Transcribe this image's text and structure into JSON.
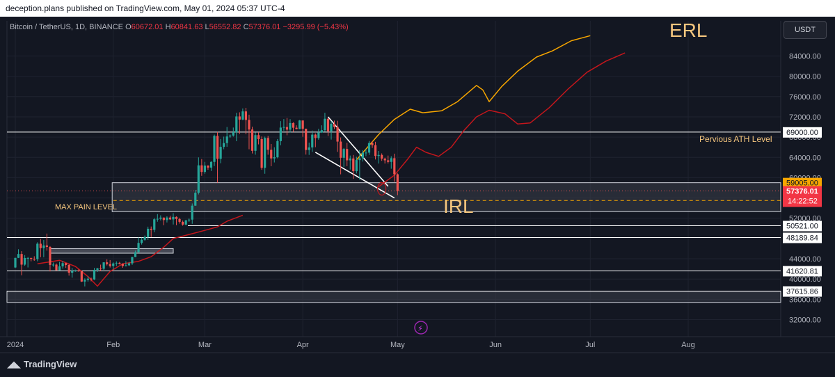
{
  "publisher": {
    "text": "deception.plans published on TradingView.com, May 01, 2024 05:37 UTC-4"
  },
  "symbol": {
    "name": "Bitcoin / TetherUS, 1D, BINANCE",
    "o_label": "O",
    "o": "60672.01",
    "h_label": "H",
    "h": "60841.63",
    "l_label": "L",
    "l": "56552.82",
    "c_label": "C",
    "c": "57376.01",
    "change": "−3295.99 (−5.43%)"
  },
  "currency_button": "USDT",
  "brand": {
    "label": "TradingView"
  },
  "colors": {
    "up": "#26a69a",
    "down": "#ef5350",
    "background": "#131722",
    "accent_orange": "#f7a600",
    "path_red": "#c4161c"
  },
  "chart_data": {
    "type": "candlestick",
    "title": "Bitcoin / TetherUS, 1D, BINANCE",
    "x_range": [
      "2024-01-01",
      "2024-08-31"
    ],
    "ylim": [
      28000,
      90000
    ],
    "grid": true,
    "x_ticks": [
      "2024",
      "Feb",
      "Mar",
      "Apr",
      "May",
      "Jun",
      "Jul",
      "Aug"
    ],
    "y_ticks": [
      "84000.00",
      "80000.00",
      "76000.00",
      "72000.00",
      "68000.00",
      "64000.00",
      "60000.00",
      "56000.00",
      "52000.00",
      "48000.00",
      "44000.00",
      "40000.00",
      "36000.00",
      "32000.00"
    ],
    "candles": [
      [
        "2024-01-01",
        42283,
        44186,
        42173,
        44180
      ],
      [
        "2024-01-02",
        44180,
        45879,
        44148,
        44946
      ],
      [
        "2024-01-03",
        44946,
        45500,
        40750,
        42845
      ],
      [
        "2024-01-04",
        42845,
        44729,
        42613,
        44151
      ],
      [
        "2024-01-05",
        44151,
        44340,
        42284,
        44162
      ],
      [
        "2024-01-06",
        44162,
        44187,
        43500,
        43989
      ],
      [
        "2024-01-07",
        43989,
        44495,
        43599,
        43943
      ],
      [
        "2024-01-08",
        43943,
        47248,
        43500,
        46970
      ],
      [
        "2024-01-09",
        46970,
        47893,
        44300,
        46105
      ],
      [
        "2024-01-10",
        46105,
        47695,
        44300,
        46632
      ],
      [
        "2024-01-11",
        46632,
        48970,
        45606,
        46339
      ],
      [
        "2024-01-12",
        46339,
        46500,
        41500,
        42782
      ],
      [
        "2024-01-13",
        42782,
        43257,
        42436,
        42847
      ],
      [
        "2024-01-14",
        42847,
        43079,
        41720,
        41732
      ],
      [
        "2024-01-15",
        41732,
        43400,
        41718,
        42511
      ],
      [
        "2024-01-16",
        42511,
        43578,
        42050,
        43137
      ],
      [
        "2024-01-17",
        43137,
        43198,
        42200,
        42776
      ],
      [
        "2024-01-18",
        42776,
        42930,
        40683,
        41262
      ],
      [
        "2024-01-19",
        41262,
        42196,
        40280,
        41618
      ],
      [
        "2024-01-20",
        41618,
        41865,
        41424,
        41665
      ],
      [
        "2024-01-21",
        41665,
        41877,
        41446,
        41545
      ],
      [
        "2024-01-22",
        41545,
        41689,
        39431,
        39507
      ],
      [
        "2024-01-23",
        39507,
        40129,
        38555,
        39845
      ],
      [
        "2024-01-24",
        39845,
        40555,
        39485,
        40077
      ],
      [
        "2024-01-25",
        40077,
        40300,
        39550,
        39933
      ],
      [
        "2024-01-26",
        39933,
        42200,
        39822,
        41816
      ],
      [
        "2024-01-27",
        41816,
        42200,
        41394,
        42120
      ],
      [
        "2024-01-28",
        42120,
        42842,
        41620,
        42031
      ],
      [
        "2024-01-29",
        42031,
        43305,
        41804,
        43300
      ],
      [
        "2024-01-30",
        43300,
        43882,
        42683,
        42946
      ],
      [
        "2024-01-31",
        42946,
        43745,
        42276,
        42580
      ],
      [
        "2024-02-01",
        42580,
        43285,
        41884,
        43082
      ],
      [
        "2024-02-02",
        43082,
        43494,
        42564,
        43200
      ],
      [
        "2024-02-03",
        43200,
        43380,
        42880,
        43011
      ],
      [
        "2024-02-04",
        43011,
        43119,
        42222,
        42582
      ],
      [
        "2024-02-05",
        42582,
        43538,
        42500,
        42708
      ],
      [
        "2024-02-06",
        42708,
        43400,
        42574,
        43098
      ],
      [
        "2024-02-07",
        43098,
        44396,
        42788,
        44349
      ],
      [
        "2024-02-08",
        44349,
        45614,
        44331,
        45288
      ],
      [
        "2024-02-09",
        45288,
        48200,
        45242,
        47132
      ],
      [
        "2024-02-10",
        47132,
        48170,
        46800,
        47751
      ],
      [
        "2024-02-11",
        47751,
        48592,
        47558,
        48299
      ],
      [
        "2024-02-12",
        48299,
        50334,
        47710,
        49917
      ],
      [
        "2024-02-13",
        49917,
        50368,
        48300,
        49699
      ],
      [
        "2024-02-14",
        49699,
        52043,
        49225,
        51795
      ],
      [
        "2024-02-15",
        51795,
        52816,
        51314,
        51880
      ],
      [
        "2024-02-16",
        51880,
        52572,
        51566,
        52124
      ],
      [
        "2024-02-17",
        52124,
        52162,
        50625,
        51642
      ],
      [
        "2024-02-18",
        51642,
        52377,
        51163,
        52137
      ],
      [
        "2024-02-19",
        52137,
        52488,
        51677,
        51774
      ],
      [
        "2024-02-20",
        51774,
        52985,
        50760,
        52258
      ],
      [
        "2024-02-21",
        52258,
        52366,
        50625,
        51849
      ],
      [
        "2024-02-22",
        51849,
        52065,
        50940,
        51288
      ],
      [
        "2024-02-23",
        51288,
        51548,
        50521,
        50744
      ],
      [
        "2024-02-24",
        50744,
        51698,
        50586,
        51568
      ],
      [
        "2024-02-25",
        51568,
        51950,
        51281,
        51728
      ],
      [
        "2024-02-26",
        51728,
        54910,
        50901,
        54476
      ],
      [
        "2024-02-27",
        54476,
        57588,
        54451,
        57037
      ],
      [
        "2024-02-28",
        57037,
        64000,
        56691,
        62432
      ],
      [
        "2024-02-29",
        62432,
        63676,
        60364,
        61130
      ],
      [
        "2024-03-01",
        61130,
        63114,
        60777,
        62387
      ],
      [
        "2024-03-02",
        62387,
        62433,
        61561,
        61987
      ],
      [
        "2024-03-03",
        61987,
        63231,
        61321,
        63113
      ],
      [
        "2024-03-04",
        63113,
        68499,
        62300,
        68245
      ],
      [
        "2024-03-05",
        68245,
        69000,
        59005,
        63724
      ],
      [
        "2024-03-06",
        63724,
        67637,
        62848,
        66074
      ],
      [
        "2024-03-07",
        66074,
        68100,
        65600,
        66823
      ],
      [
        "2024-03-08",
        66823,
        69990,
        66082,
        68124
      ],
      [
        "2024-03-09",
        68124,
        68541,
        67861,
        68313
      ],
      [
        "2024-03-10",
        68313,
        69887,
        68094,
        68955
      ],
      [
        "2024-03-11",
        68955,
        72800,
        67194,
        72078
      ],
      [
        "2024-03-12",
        72078,
        72890,
        68620,
        71452
      ],
      [
        "2024-03-13",
        71452,
        73650,
        71333,
        73072
      ],
      [
        "2024-03-14",
        73072,
        73777,
        68555,
        71388
      ],
      [
        "2024-03-15",
        71388,
        72419,
        65600,
        69499
      ],
      [
        "2024-03-16",
        69499,
        70043,
        64780,
        65300
      ],
      [
        "2024-03-17",
        65300,
        68904,
        64533,
        68393
      ],
      [
        "2024-03-18",
        68393,
        68956,
        66565,
        67609
      ],
      [
        "2024-03-19",
        67609,
        68124,
        61555,
        61937
      ],
      [
        "2024-03-20",
        61937,
        68100,
        60775,
        67840
      ],
      [
        "2024-03-21",
        67840,
        68240,
        64529,
        65501
      ],
      [
        "2024-03-22",
        65501,
        66650,
        62260,
        63796
      ],
      [
        "2024-03-23",
        63796,
        65999,
        63000,
        64037
      ],
      [
        "2024-03-24",
        64037,
        67622,
        63825,
        67211
      ],
      [
        "2024-03-25",
        67211,
        71150,
        66385,
        69880
      ],
      [
        "2024-03-26",
        69880,
        71561,
        69280,
        69988
      ],
      [
        "2024-03-27",
        69988,
        71769,
        68359,
        69469
      ],
      [
        "2024-03-28",
        69469,
        71552,
        68903,
        70780
      ],
      [
        "2024-03-29",
        70780,
        70916,
        69009,
        69850
      ],
      [
        "2024-03-30",
        69850,
        70321,
        69540,
        69582
      ],
      [
        "2024-03-31",
        69582,
        71366,
        69562,
        71280
      ],
      [
        "2024-04-01",
        71280,
        71288,
        68062,
        69649
      ],
      [
        "2024-04-02",
        69649,
        69674,
        64550,
        65463
      ],
      [
        "2024-04-03",
        65463,
        66914,
        64493,
        65963
      ],
      [
        "2024-04-04",
        65963,
        69291,
        65064,
        68488
      ],
      [
        "2024-04-05",
        68488,
        68725,
        66011,
        67820
      ],
      [
        "2024-04-06",
        67820,
        69629,
        67491,
        68896
      ],
      [
        "2024-04-07",
        68896,
        70326,
        68824,
        69360
      ],
      [
        "2024-04-08",
        69360,
        72797,
        69043,
        71620
      ],
      [
        "2024-04-09",
        71620,
        71758,
        68210,
        69146
      ],
      [
        "2024-04-10",
        69146,
        71172,
        67518,
        70631
      ],
      [
        "2024-04-11",
        70631,
        71256,
        69571,
        70006
      ],
      [
        "2024-04-12",
        70006,
        71227,
        65086,
        67116
      ],
      [
        "2024-04-13",
        67116,
        67931,
        60660,
        63924
      ],
      [
        "2024-04-14",
        63924,
        65840,
        62134,
        65661
      ],
      [
        "2024-04-15",
        65661,
        66867,
        62274,
        63419
      ],
      [
        "2024-04-16",
        63419,
        64365,
        61600,
        63793
      ],
      [
        "2024-04-17",
        63793,
        64475,
        59768,
        61277
      ],
      [
        "2024-04-18",
        61277,
        64125,
        60833,
        63470
      ],
      [
        "2024-04-19",
        63470,
        65450,
        59600,
        63818
      ],
      [
        "2024-04-20",
        63818,
        65419,
        63174,
        64941
      ],
      [
        "2024-04-21",
        64941,
        65695,
        64235,
        64941
      ],
      [
        "2024-04-22",
        64941,
        67233,
        64500,
        66837
      ],
      [
        "2024-04-23",
        66837,
        67199,
        65864,
        66407
      ],
      [
        "2024-04-24",
        66407,
        67075,
        63589,
        64276
      ],
      [
        "2024-04-25",
        64276,
        65275,
        62783,
        64481
      ],
      [
        "2024-04-26",
        64481,
        64789,
        63322,
        63755
      ],
      [
        "2024-04-27",
        63755,
        63923,
        62793,
        63419
      ],
      [
        "2024-04-28",
        63419,
        64362,
        62793,
        63113
      ],
      [
        "2024-04-29",
        63113,
        64228,
        61765,
        63842
      ],
      [
        "2024-04-30",
        63842,
        64734,
        59191,
        60672
      ],
      [
        "2024-05-01",
        60672.01,
        60841.63,
        56552.82,
        57376.01
      ]
    ],
    "horizontal_levels": [
      {
        "price": 69000.0,
        "label": "69000.00"
      },
      {
        "price": 50521.0,
        "label": "50521.00"
      },
      {
        "price": 48189.84,
        "label": "48189.84"
      },
      {
        "price": 41620.81,
        "label": "41620.81"
      },
      {
        "price": 37615.86,
        "label": "37615.86"
      }
    ],
    "price_labels": {
      "zone_top": "59005.00",
      "last_price": "57376.01",
      "countdown": "14:22:52"
    },
    "zones": [
      {
        "from": "2024-01-31",
        "to": "2024-08-31",
        "top": 59005,
        "bottom": 53300
      },
      {
        "from": "2024-01-12",
        "to": "2024-02-20",
        "top": 46000,
        "bottom": 45100
      },
      {
        "from": "2024-01-01",
        "to": "2024-08-31",
        "top": 37615.86,
        "bottom": 35400
      }
    ],
    "dashed_level": {
      "price": 55500
    },
    "annotations": {
      "erl": "ERL",
      "irl": "IRL",
      "max_pain": "MAX PAIN LEVEL",
      "previous_ath": "Pervious ATH Level"
    },
    "trendlines": [
      {
        "from": [
          "2024-04-09",
          72000
        ],
        "to": [
          "2024-04-28",
          58300
        ]
      },
      {
        "from": [
          "2024-04-05",
          65000
        ],
        "to": [
          "2024-04-30",
          56000
        ]
      }
    ],
    "projection_orange": [
      [
        "2024-04-18",
        63500
      ],
      [
        "2024-04-25",
        68500
      ],
      [
        "2024-04-30",
        71500
      ],
      [
        "2024-05-05",
        73500
      ],
      [
        "2024-05-09",
        72800
      ],
      [
        "2024-05-15",
        73200
      ],
      [
        "2024-05-20",
        75000
      ],
      [
        "2024-05-26",
        78200
      ],
      [
        "2024-05-28",
        77300
      ],
      [
        "2024-05-30",
        75000
      ],
      [
        "2024-06-03",
        78000
      ],
      [
        "2024-06-08",
        81000
      ],
      [
        "2024-06-14",
        83800
      ],
      [
        "2024-06-19",
        85000
      ],
      [
        "2024-06-25",
        87000
      ],
      [
        "2024-07-01",
        88000
      ]
    ],
    "projection_red": [
      [
        "2024-04-25",
        58200
      ],
      [
        "2024-04-30",
        60500
      ],
      [
        "2024-05-04",
        63500
      ],
      [
        "2024-05-07",
        66000
      ],
      [
        "2024-05-10",
        65000
      ],
      [
        "2024-05-14",
        64200
      ],
      [
        "2024-05-18",
        66000
      ],
      [
        "2024-05-22",
        69300
      ],
      [
        "2024-05-26",
        72000
      ],
      [
        "2024-05-30",
        73300
      ],
      [
        "2024-06-04",
        72600
      ],
      [
        "2024-06-08",
        70600
      ],
      [
        "2024-06-12",
        70800
      ],
      [
        "2024-06-18",
        73800
      ],
      [
        "2024-06-24",
        77500
      ],
      [
        "2024-06-30",
        80800
      ],
      [
        "2024-07-06",
        83000
      ],
      [
        "2024-07-12",
        84600
      ]
    ],
    "ma_line": [
      [
        "2024-01-08",
        43000
      ],
      [
        "2024-01-15",
        43700
      ],
      [
        "2024-01-20",
        42500
      ],
      [
        "2024-01-24",
        40500
      ],
      [
        "2024-01-27",
        38600
      ],
      [
        "2024-01-31",
        41500
      ],
      [
        "2024-02-04",
        43000
      ],
      [
        "2024-02-09",
        43500
      ],
      [
        "2024-02-13",
        44400
      ],
      [
        "2024-02-17",
        46300
      ],
      [
        "2024-02-20",
        48000
      ],
      [
        "2024-02-25",
        48800
      ],
      [
        "2024-03-01",
        49600
      ],
      [
        "2024-03-05",
        50300
      ],
      [
        "2024-03-08",
        51400
      ],
      [
        "2024-03-13",
        52600
      ]
    ]
  }
}
